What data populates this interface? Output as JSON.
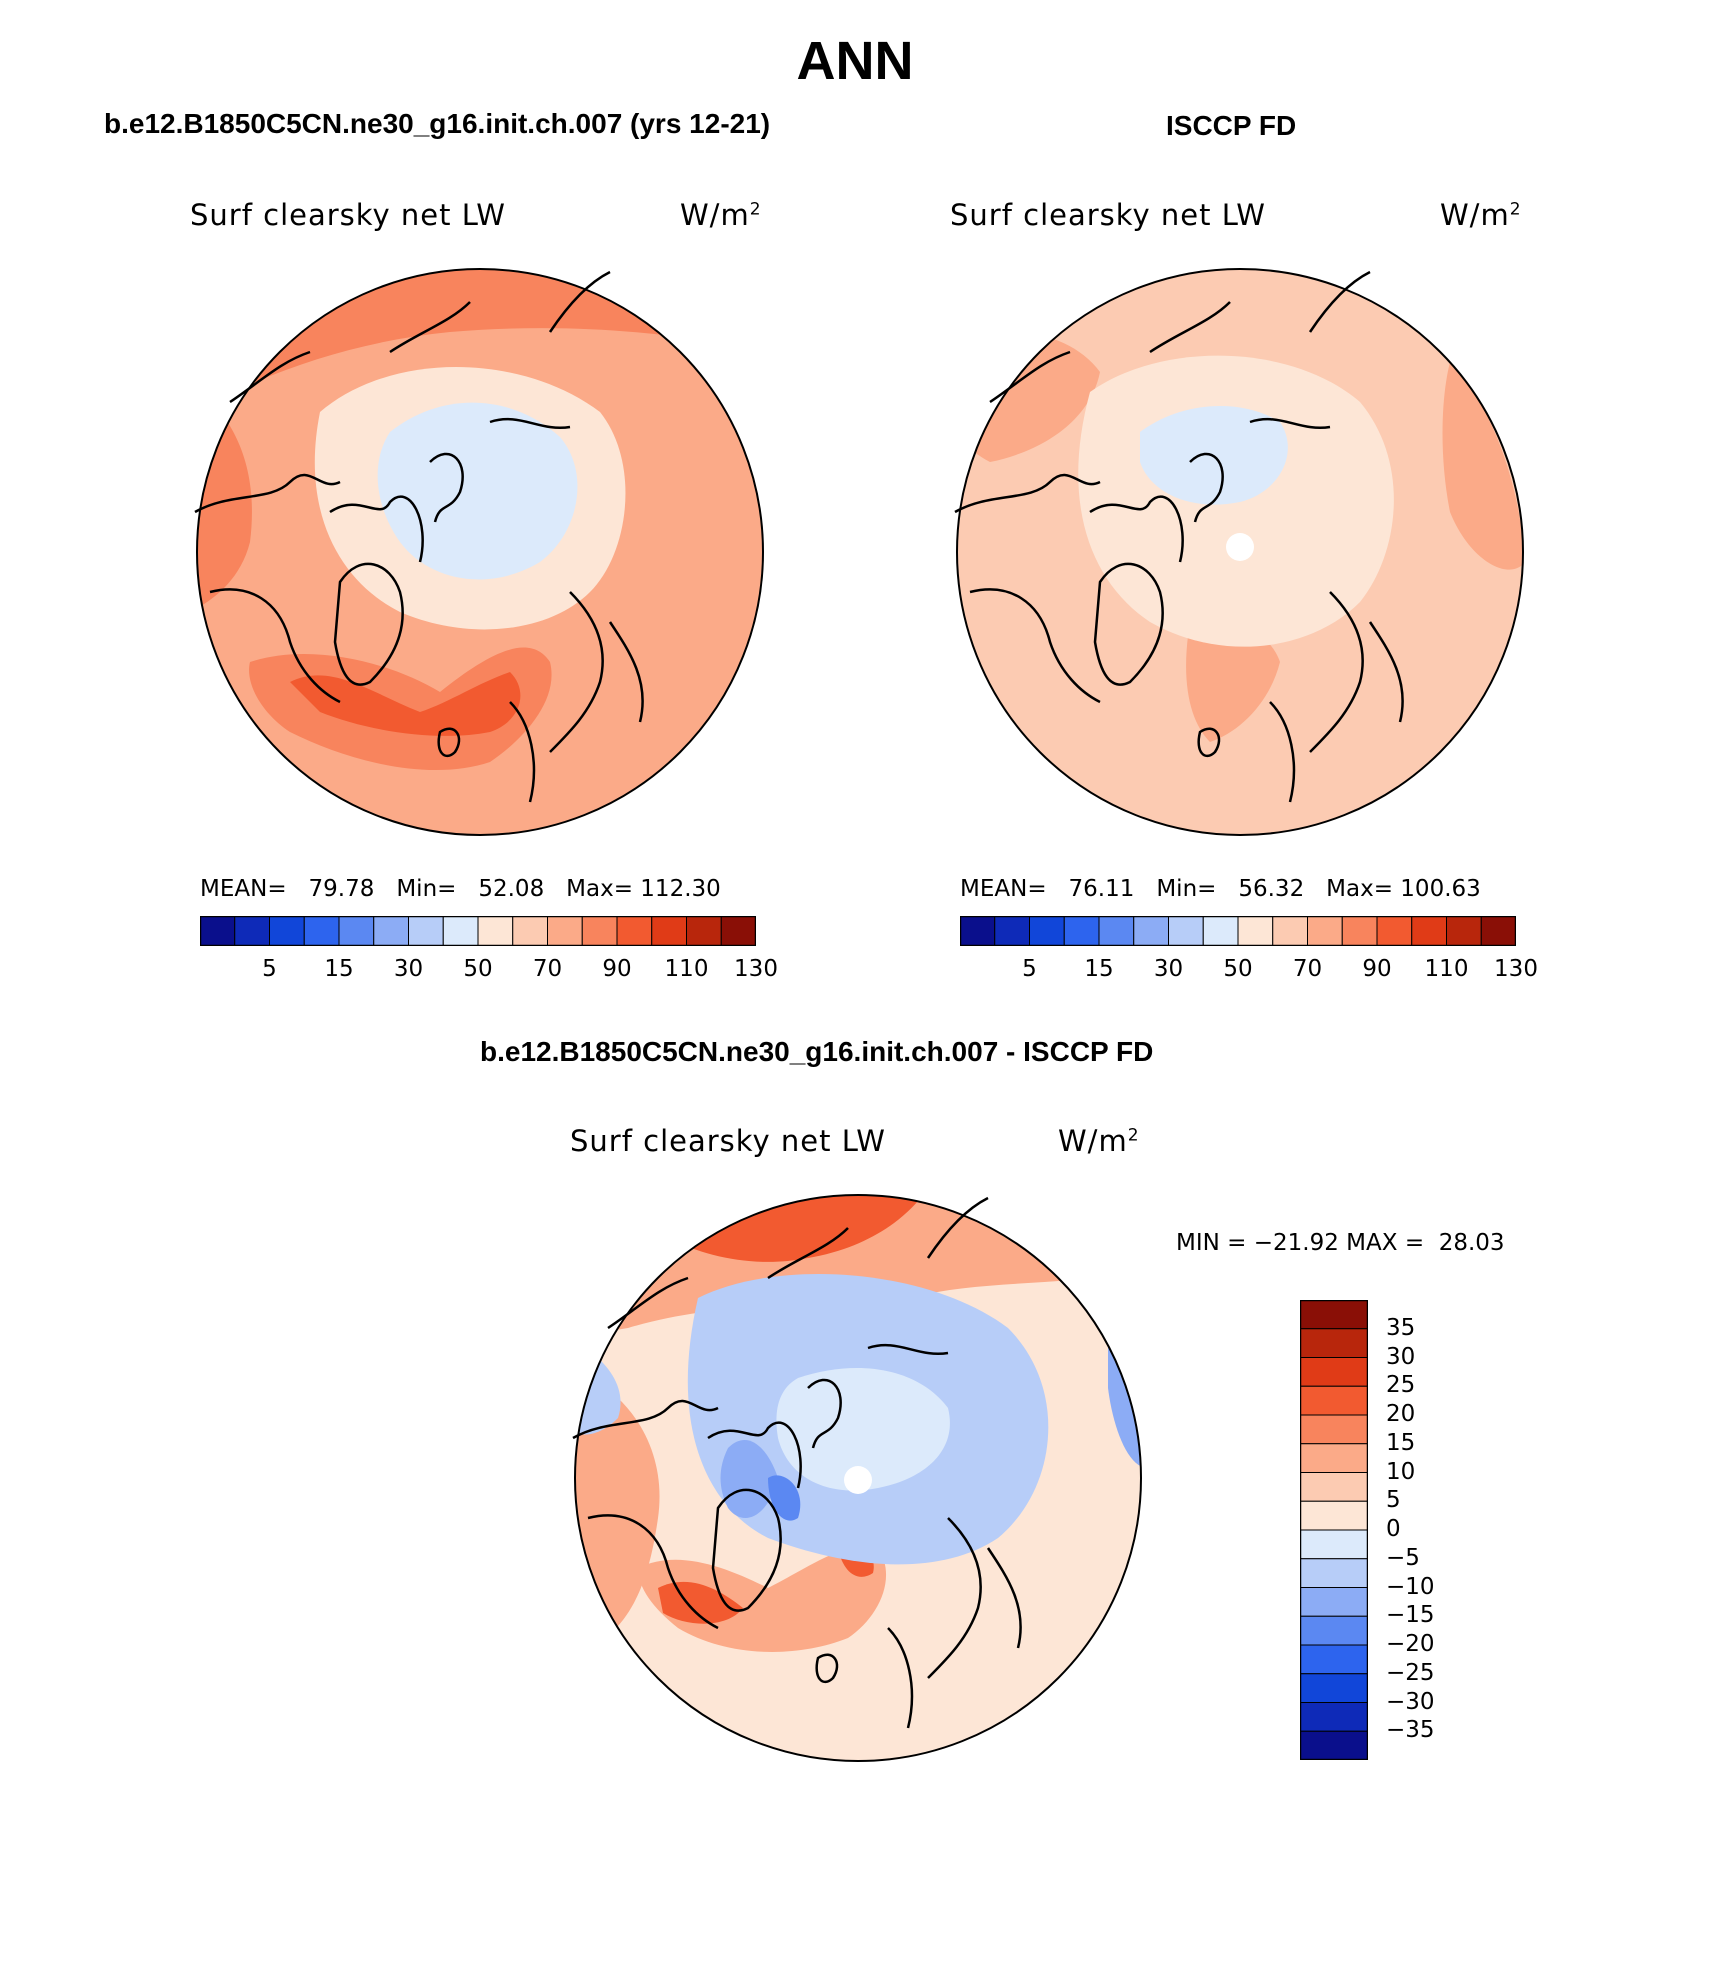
{
  "figure": {
    "title": "ANN"
  },
  "panels": [
    {
      "title": "b.e12.B1850C5CN.ne30_g16.init.ch.007 (yrs 12-21)",
      "label": "Surf clearsky net LW",
      "units": "W/m",
      "units_sup": "2",
      "stats": {
        "mean_label": "MEAN=",
        "mean": "79.78",
        "min_label": "Min=",
        "min": "52.08",
        "max_label": "Max=",
        "max": "112.30"
      }
    },
    {
      "title": "ISCCP FD",
      "label": "Surf clearsky net LW",
      "units": "W/m",
      "units_sup": "2",
      "stats": {
        "mean_label": "MEAN=",
        "mean": "76.11",
        "min_label": "Min=",
        "min": "56.32",
        "max_label": "Max=",
        "max": "100.63"
      }
    },
    {
      "title": "b.e12.B1850C5CN.ne30_g16.init.ch.007 - ISCCP FD",
      "label": "Surf clearsky net LW",
      "units": "W/m",
      "units_sup": "2",
      "stats": {
        "min_label": "MIN =",
        "min": "−21.92",
        "max_label": "MAX =",
        "max": "28.03"
      }
    }
  ],
  "colorbar_abs": {
    "tick_labels": [
      "5",
      "15",
      "30",
      "50",
      "70",
      "90",
      "110",
      "130"
    ],
    "colors": [
      "#0a0f8c",
      "#0e2ab8",
      "#1146d9",
      "#2d64ee",
      "#5b88f2",
      "#8cacf5",
      "#b7cdf8",
      "#dceafb",
      "#fde6d6",
      "#fccbb2",
      "#fbaa88",
      "#f8845d",
      "#f25a30",
      "#e03b17",
      "#b8260c",
      "#8a0f06"
    ]
  },
  "colorbar_diff": {
    "tick_labels": [
      "35",
      "30",
      "25",
      "20",
      "15",
      "10",
      "5",
      "0",
      "−5",
      "−10",
      "−15",
      "−20",
      "−25",
      "−30",
      "−35"
    ],
    "colors": [
      "#8a0f06",
      "#b8260c",
      "#e03b17",
      "#f25a30",
      "#f8845d",
      "#fbaa88",
      "#fccbb2",
      "#fde6d6",
      "#dceafb",
      "#b7cdf8",
      "#8cacf5",
      "#5b88f2",
      "#2d64ee",
      "#1146d9",
      "#0e2ab8",
      "#0a0f8c"
    ]
  },
  "map_colors": {
    "ocean_model": "#fbaa88",
    "warm_model": "#f8845d",
    "hot_model": "#f25a30",
    "ice_model": "#dceafb",
    "ring_model": "#fde6d6",
    "ocean_obs": "#fccbb2",
    "warm_obs": "#fbaa88",
    "ice_obs": "#dceafb",
    "ring_obs": "#fde6d6",
    "diff_base": "#fde6d6",
    "diff_pos": "#fbaa88",
    "diff_hot": "#f25a30",
    "diff_neg": "#b7cdf8",
    "diff_neg2": "#8cacf5",
    "diff_neg3": "#5b88f2",
    "diff_ice": "#dceafb",
    "pole_hole": "#ffffff",
    "coastline": "#000000"
  }
}
